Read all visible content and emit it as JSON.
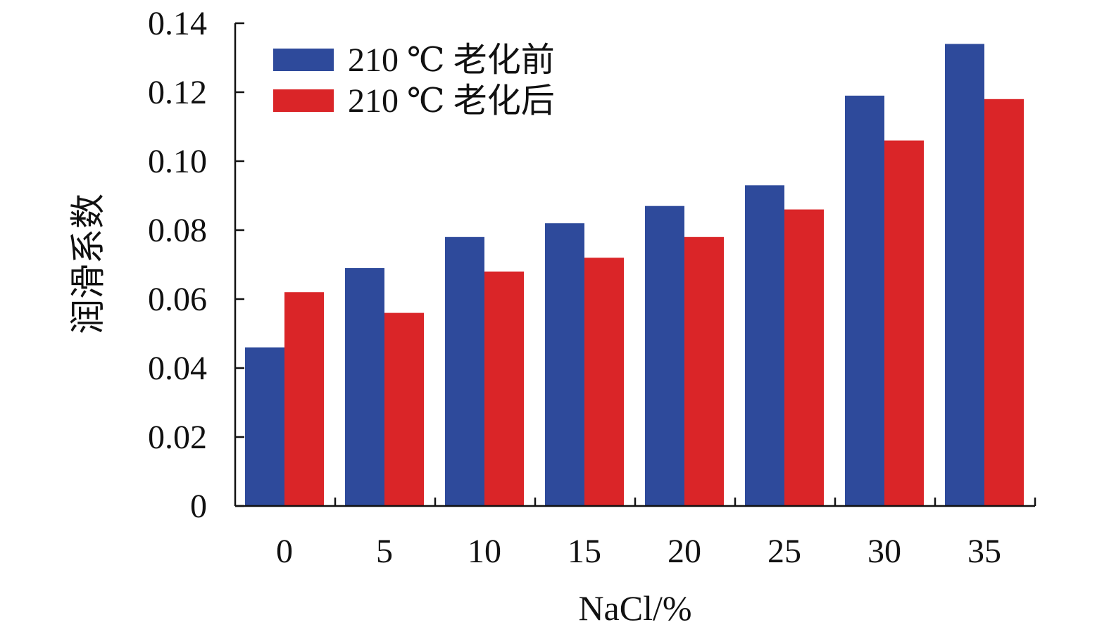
{
  "chart_data": {
    "type": "bar",
    "title": "",
    "xlabel": "NaCl/%",
    "ylabel": "润滑系数",
    "categories": [
      "0",
      "5",
      "10",
      "15",
      "20",
      "25",
      "30",
      "35"
    ],
    "series": [
      {
        "name": "210 ℃ 老化前",
        "color": "#2E4A9B",
        "values": [
          0.046,
          0.069,
          0.078,
          0.082,
          0.087,
          0.093,
          0.119,
          0.134
        ]
      },
      {
        "name": "210 ℃ 老化后",
        "color": "#DA2528",
        "values": [
          0.062,
          0.056,
          0.068,
          0.072,
          0.078,
          0.086,
          0.106,
          0.118
        ]
      }
    ],
    "ylim": [
      0,
      0.14
    ],
    "yticks": [
      "0",
      "0.02",
      "0.04",
      "0.06",
      "0.08",
      "0.10",
      "0.12",
      "0.14"
    ],
    "grid": false,
    "legend_position": "top-left"
  }
}
